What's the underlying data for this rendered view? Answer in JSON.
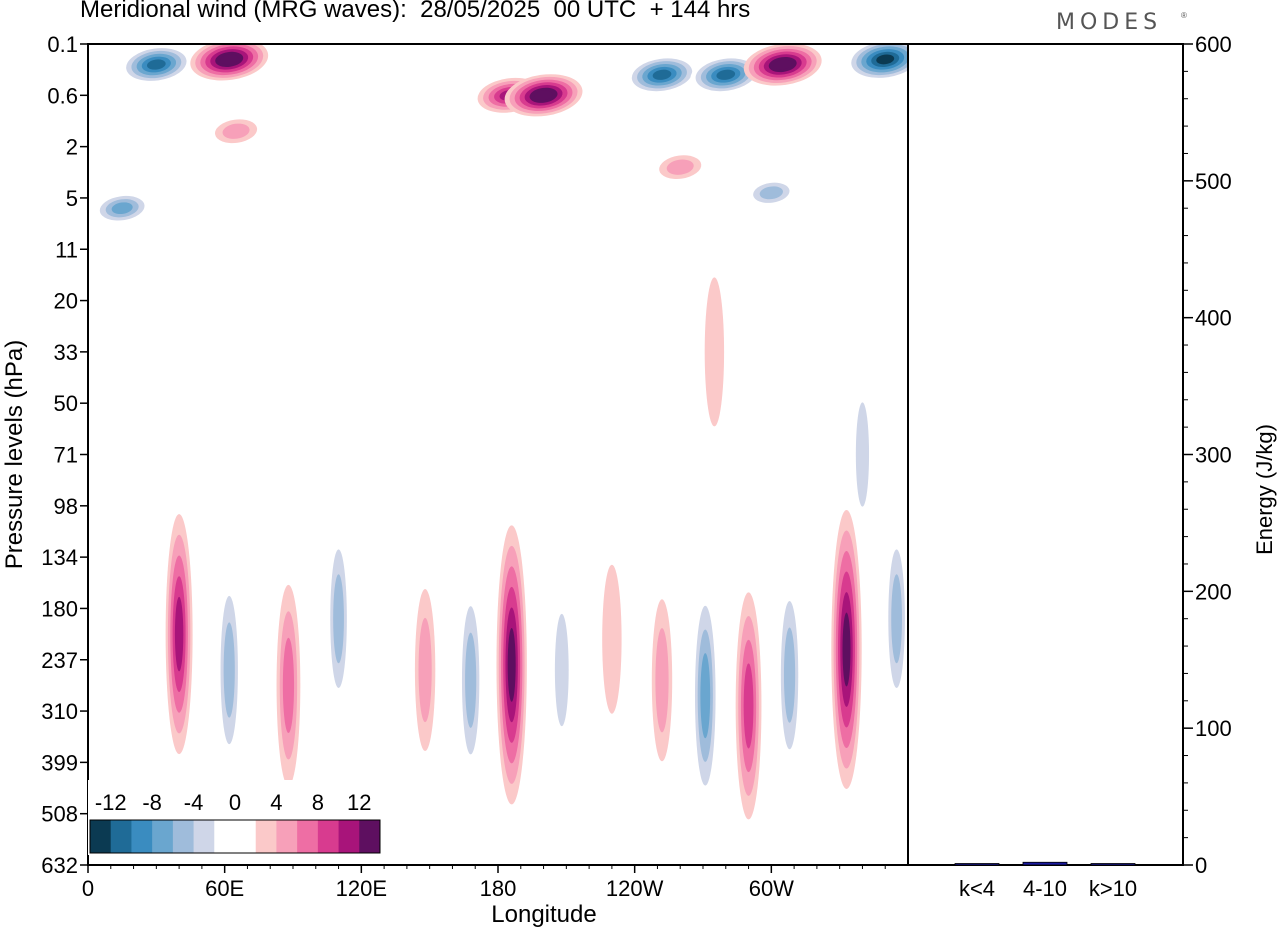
{
  "title": "Meridional wind (MRG waves):  28/05/2025  00 UTC  + 144 hrs",
  "brand": "MODES",
  "chart_data": [
    {
      "type": "heatmap",
      "title": "Meridional wind (MRG waves):  28/05/2025  00 UTC  + 144 hrs",
      "xlabel": "Longitude",
      "ylabel": "Pressure levels (hPa)",
      "x_ticks": [
        "0",
        "60E",
        "120E",
        "180",
        "120W",
        "60W"
      ],
      "y_ticks": [
        "0.1",
        "0.6",
        "2",
        "5",
        "11",
        "20",
        "33",
        "50",
        "71",
        "98",
        "134",
        "180",
        "237",
        "310",
        "399",
        "508",
        "632"
      ],
      "colorbar": {
        "labels": [
          "-12",
          "-8",
          "-4",
          "0",
          "4",
          "8",
          "12"
        ],
        "colors": [
          "#0b3a52",
          "#1f6b97",
          "#3a8cc0",
          "#6aa6cf",
          "#9fbcdb",
          "#cfd6e8",
          "#ffffff",
          "#ffffff",
          "#fbc9c9",
          "#f7a0b9",
          "#ee6ea4",
          "#d83b8f",
          "#a8147a",
          "#5e0f60"
        ]
      },
      "structures": [
        {
          "lon": 15,
          "level": 3.2,
          "value": -8
        },
        {
          "lon": 40,
          "level": 11.5,
          "value": 10
        },
        {
          "lon": 62,
          "level": 12.2,
          "value": -7
        },
        {
          "lon": 88,
          "level": 12.5,
          "value": 7
        },
        {
          "lon": 110,
          "level": 11.2,
          "value": -6
        },
        {
          "lon": 148,
          "level": 12.2,
          "value": 4
        },
        {
          "lon": 168,
          "level": 12.4,
          "value": -7
        },
        {
          "lon": 186,
          "level": 12.1,
          "value": 13
        },
        {
          "lon": 208,
          "level": 12.2,
          "value": -5
        },
        {
          "lon": 230,
          "level": 11.6,
          "value": 3
        },
        {
          "lon": 252,
          "level": 12.4,
          "value": 4
        },
        {
          "lon": 271,
          "level": 12.7,
          "value": -9
        },
        {
          "lon": 290,
          "level": 12.9,
          "value": 9
        },
        {
          "lon": 308,
          "level": 12.3,
          "value": -7
        },
        {
          "lon": 333,
          "level": 11.8,
          "value": 13
        },
        {
          "lon": 355,
          "level": 11.2,
          "value": -6
        },
        {
          "lon": 30,
          "level": 0.4,
          "value": -12
        },
        {
          "lon": 62,
          "level": 0.3,
          "value": 14
        },
        {
          "lon": 185,
          "level": 1.0,
          "value": 10
        },
        {
          "lon": 200,
          "level": 1.0,
          "value": 14
        },
        {
          "lon": 252,
          "level": 0.6,
          "value": -12
        },
        {
          "lon": 280,
          "level": 0.6,
          "value": -12
        },
        {
          "lon": 305,
          "level": 0.4,
          "value": 14
        },
        {
          "lon": 350,
          "level": 0.3,
          "value": -14
        },
        {
          "lon": 260,
          "level": 2.4,
          "value": 4
        },
        {
          "lon": 300,
          "level": 2.9,
          "value": -6
        },
        {
          "lon": 65,
          "level": 1.7,
          "value": 4
        },
        {
          "lon": 275,
          "level": 6.0,
          "value": 3
        },
        {
          "lon": 340,
          "level": 8.0,
          "value": -4
        }
      ]
    },
    {
      "type": "bar",
      "ylabel": "Energy (J/kg)",
      "ylim": [
        0,
        600
      ],
      "y_ticks": [
        "0",
        "100",
        "200",
        "300",
        "400",
        "500",
        "600"
      ],
      "categories": [
        "k<4",
        "4-10",
        "k>10"
      ],
      "values": [
        0.5,
        2,
        0.3
      ],
      "bar_color": "#1a1aa0"
    }
  ]
}
